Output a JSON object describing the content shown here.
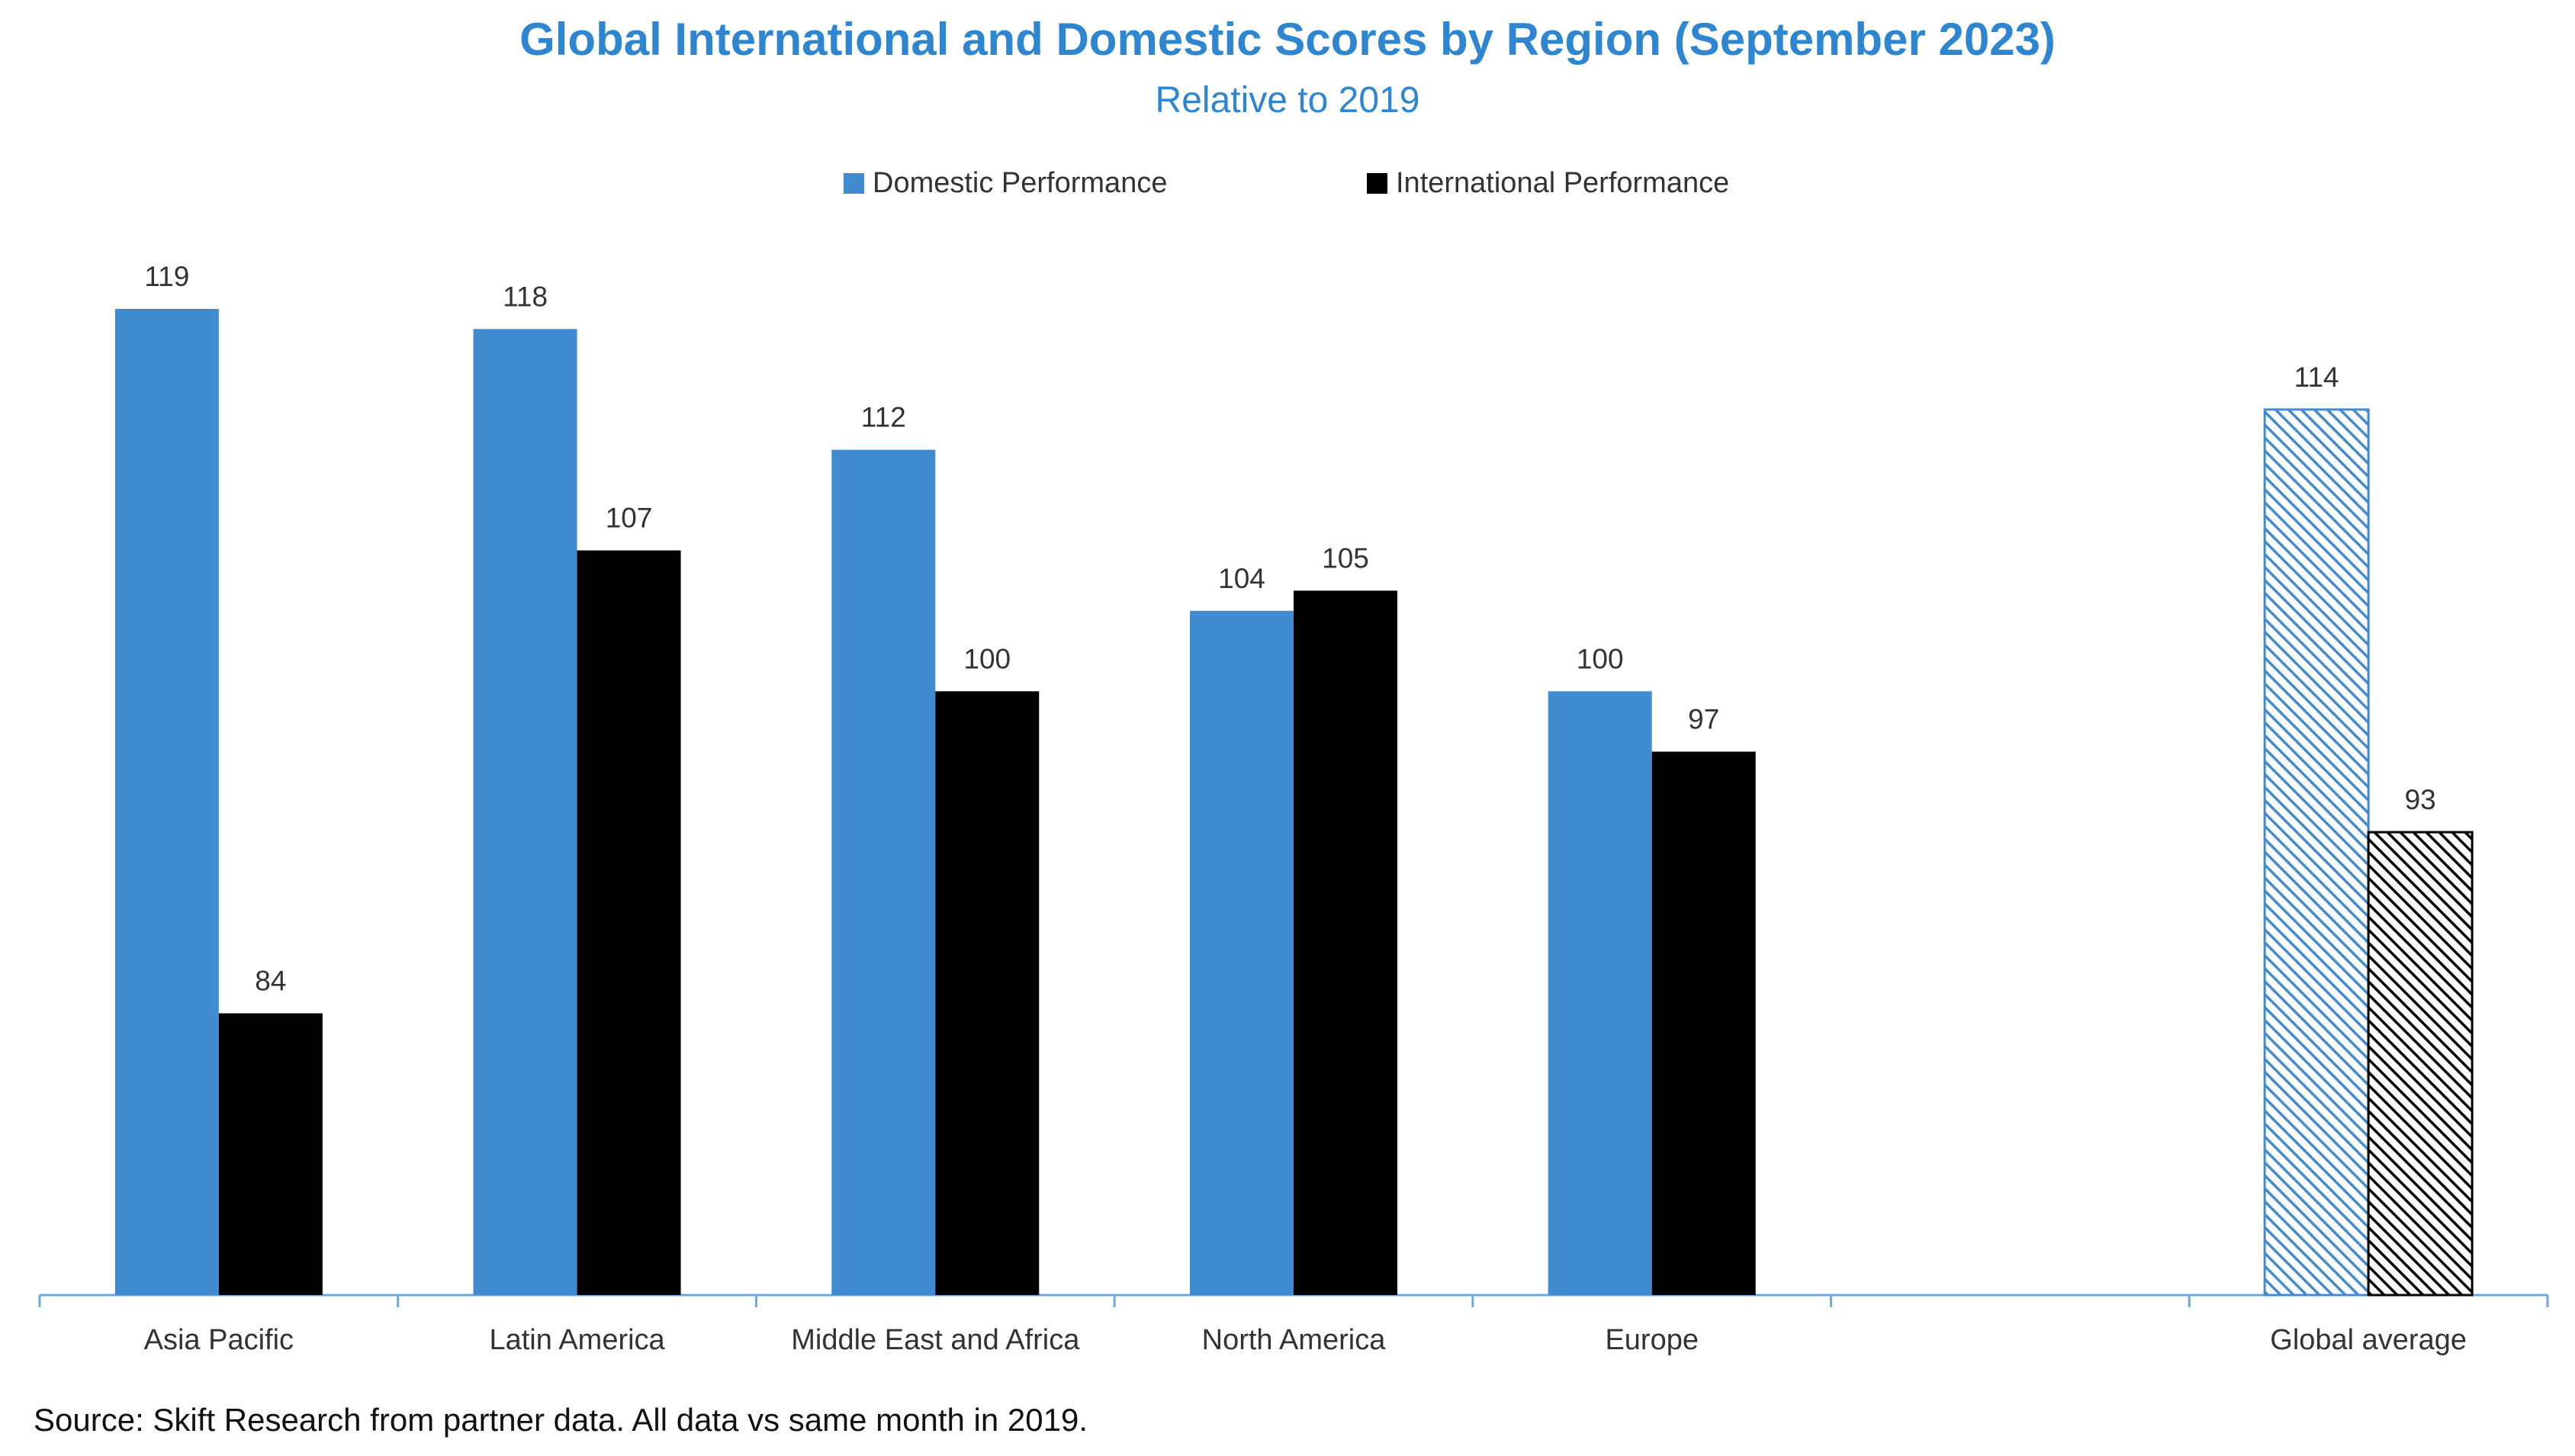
{
  "chart_data": {
    "type": "bar",
    "title": "Global International and Domestic Scores by Region (September 2023)",
    "subtitle": "Relative to 2019",
    "categories": [
      "Asia Pacific",
      "Latin America",
      "Middle East and Africa",
      "North America",
      "Europe",
      "",
      "Global average"
    ],
    "series": [
      {
        "name": "Domestic Performance",
        "values": [
          119,
          118,
          112,
          104,
          100,
          null,
          114
        ]
      },
      {
        "name": "International Performance",
        "values": [
          84,
          107,
          100,
          105,
          97,
          null,
          93
        ]
      }
    ],
    "legend_position": "top-center",
    "grid": false,
    "y_axis_visible": false,
    "ylim": [
      70,
      121
    ],
    "hatched_categories": [
      "Global average"
    ],
    "source_note": "Source: Skift Research from partner data. All data vs same month in 2019."
  },
  "colors": {
    "title": "#2E86D1",
    "domestic": "#418CD1",
    "international": "#000000",
    "axis": "#6FA8DC",
    "text": "#333333"
  }
}
